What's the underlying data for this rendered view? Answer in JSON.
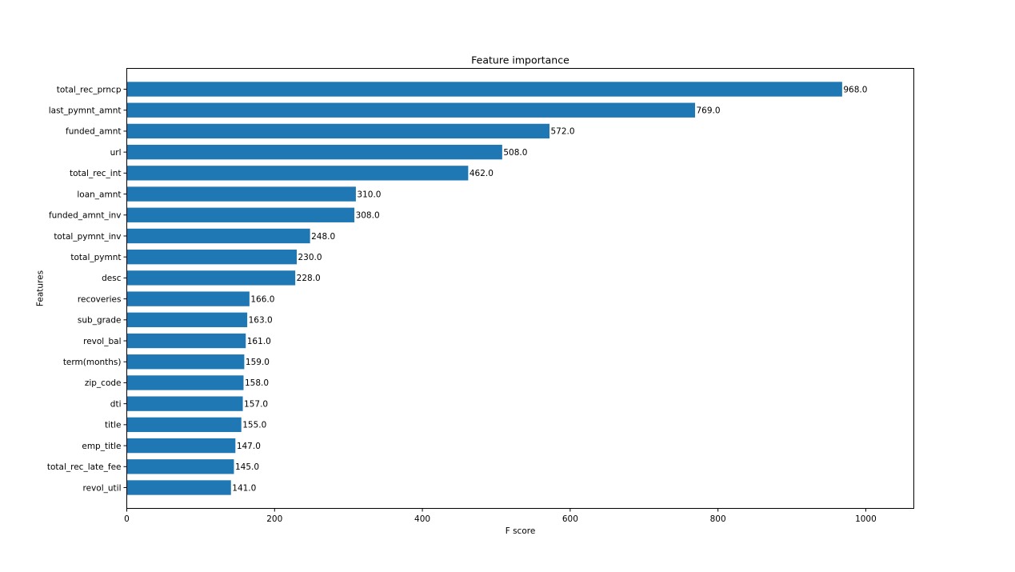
{
  "chart_data": {
    "type": "bar",
    "orientation": "horizontal",
    "title": "Feature importance",
    "xlabel": "F score",
    "ylabel": "Features",
    "xlim": [
      0,
      1065
    ],
    "x_ticks": [
      0,
      200,
      400,
      600,
      800,
      1000
    ],
    "grid": false,
    "bar_color": "#1f77b4",
    "categories": [
      "total_rec_prncp",
      "last_pymnt_amnt",
      "funded_amnt",
      "url",
      "total_rec_int",
      "loan_amnt",
      "funded_amnt_inv",
      "total_pymnt_inv",
      "total_pymnt",
      "desc",
      "recoveries",
      "sub_grade",
      "revol_bal",
      "term(months)",
      "zip_code",
      "dti",
      "title",
      "emp_title",
      "total_rec_late_fee",
      "revol_util"
    ],
    "values": [
      968,
      769,
      572,
      508,
      462,
      310,
      308,
      248,
      230,
      228,
      166,
      163,
      161,
      159,
      158,
      157,
      155,
      147,
      145,
      141
    ],
    "value_labels": [
      "968.0",
      "769.0",
      "572.0",
      "508.0",
      "462.0",
      "310.0",
      "308.0",
      "248.0",
      "230.0",
      "228.0",
      "166.0",
      "163.0",
      "161.0",
      "159.0",
      "158.0",
      "157.0",
      "155.0",
      "147.0",
      "145.0",
      "141.0"
    ]
  }
}
